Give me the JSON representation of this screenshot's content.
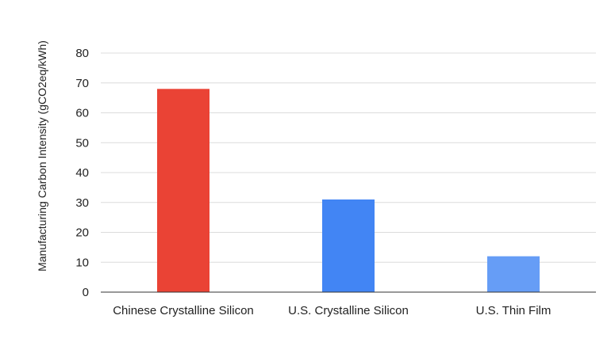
{
  "chart_data": {
    "type": "bar",
    "title": "",
    "xlabel": "",
    "ylabel": "Manufacturing Carbon Intensity (gCO2eq/kWh)",
    "categories": [
      "Chinese Crystalline Silicon",
      "U.S. Crystalline Silicon",
      "U.S. Thin Film"
    ],
    "values": [
      68,
      31,
      12
    ],
    "colors": [
      "#ea4335",
      "#4285f4",
      "#669df6"
    ],
    "ylim": [
      0,
      80
    ],
    "yticks": [
      0,
      10,
      20,
      30,
      40,
      50,
      60,
      70,
      80
    ],
    "grid": true,
    "legend": "none"
  }
}
